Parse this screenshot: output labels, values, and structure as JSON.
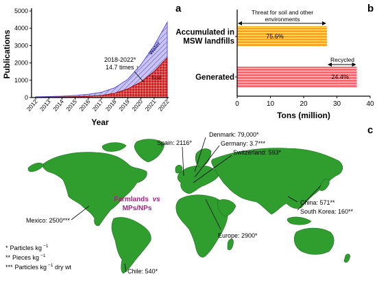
{
  "panels": {
    "a": {
      "letter": "a"
    },
    "b": {
      "letter": "b"
    },
    "c": {
      "letter": "c"
    }
  },
  "colors": {
    "soil": "#e0191f",
    "water": "#5b4fd6",
    "water_fill": "#c9c5ef",
    "mined": "#f5a623",
    "generated": "#f26a72",
    "land": "#2f9e2f",
    "ocean": "#ffffff",
    "magenta": "#a0267d"
  },
  "chart_data": [
    {
      "type": "area",
      "panel": "a",
      "title": "",
      "xlabel": "Year",
      "ylabel": "Publications",
      "x": [
        "2012",
        "2013",
        "2014",
        "2015",
        "2016",
        "2017",
        "2018",
        "2019",
        "2020",
        "2021",
        "2022"
      ],
      "ylim": [
        0,
        5000
      ],
      "yticks": [
        0,
        1000,
        2000,
        3000,
        4000,
        5000
      ],
      "series": [
        {
          "name": "Soil",
          "values": [
            20,
            25,
            35,
            50,
            80,
            120,
            250,
            500,
            900,
            1500,
            2300
          ]
        },
        {
          "name": "Water",
          "values": [
            40,
            60,
            80,
            120,
            190,
            300,
            560,
            1050,
            1900,
            3000,
            4350
          ]
        }
      ],
      "annotation": {
        "line1": "2018-2022*",
        "line2": "14.7 times ↑"
      }
    },
    {
      "type": "bar",
      "panel": "b",
      "title": "",
      "xlabel": "Tons (million)",
      "ylabel": "",
      "xlim": [
        0,
        40
      ],
      "xticks": [
        0,
        10,
        20,
        30,
        40
      ],
      "orientation": "horizontal",
      "categories": [
        "Accumulated in MSW landfills",
        "Generated"
      ],
      "category_lines": [
        [
          "Accumulated in",
          "MSW landfills"
        ],
        [
          "Generated"
        ]
      ],
      "values": [
        27,
        36
      ],
      "bar_labels": [
        "75.6%",
        "24.4%"
      ],
      "annotations": {
        "threat_line1": "Threat for soil and other",
        "threat_line2": "environments",
        "threat_range": [
          0,
          27
        ],
        "recycled": "Recycled",
        "recycled_range": [
          27,
          36
        ]
      }
    },
    {
      "type": "map",
      "panel": "c",
      "center_title_line1": "Farmlands",
      "center_title_vs": "vs",
      "center_title_line2": "MPs/NPs",
      "points": [
        {
          "label": "Spain: 2116*"
        },
        {
          "label": "Denmark: 79,000*"
        },
        {
          "label": "Germany: 3.7***"
        },
        {
          "label": "Switzerland: 593*"
        },
        {
          "label": "Mexico: 2500***"
        },
        {
          "label": "Europe: 2900*"
        },
        {
          "label": "China: 571**"
        },
        {
          "label": "South Korea: 160**"
        },
        {
          "label": "Chile: 540*"
        }
      ],
      "legend": [
        {
          "marker": "*",
          "text": "Particles kg",
          "sup": "−1",
          "suffix": ""
        },
        {
          "marker": "**",
          "text": "Pieces kg",
          "sup": "−1",
          "suffix": ""
        },
        {
          "marker": "***",
          "text": "Particles kg",
          "sup": "−1",
          "suffix": " dry wt"
        }
      ]
    }
  ]
}
